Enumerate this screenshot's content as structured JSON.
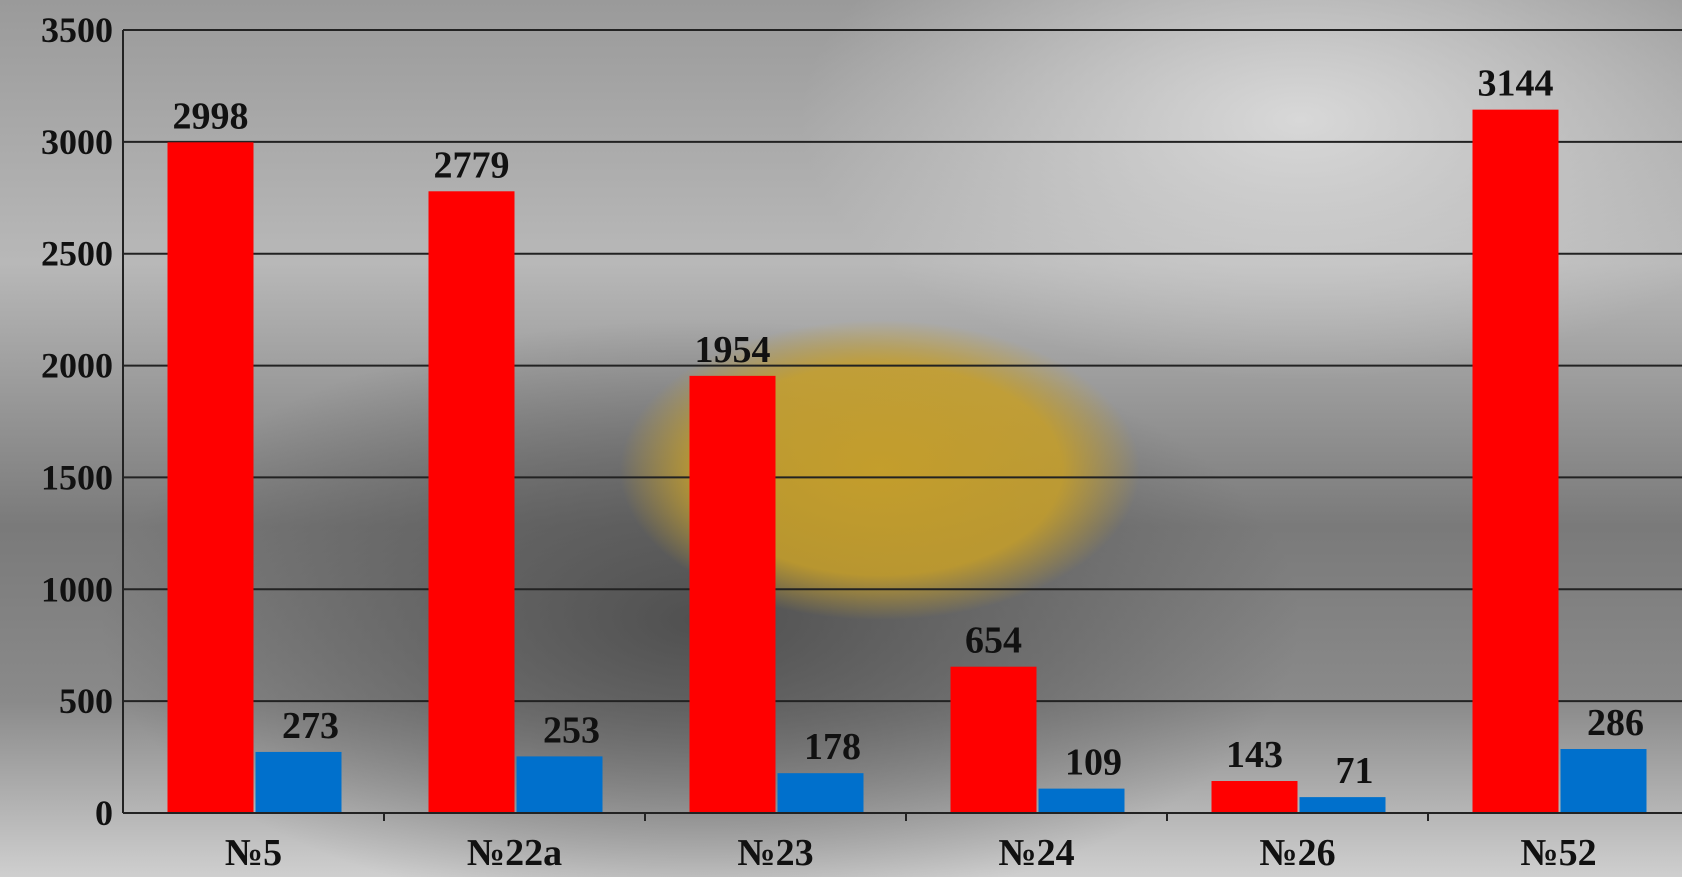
{
  "chart_data": {
    "type": "bar",
    "categories": [
      "№5",
      "№22а",
      "№23",
      "№24",
      "№26",
      "№52"
    ],
    "series": [
      {
        "color": "#ff0000",
        "values": [
          2998,
          2779,
          1954,
          654,
          143,
          3144
        ]
      },
      {
        "color": "#0070cc",
        "values": [
          273,
          253,
          178,
          109,
          71,
          286
        ]
      }
    ],
    "ylim": [
      0,
      3500
    ],
    "yticks": [
      0,
      500,
      1000,
      1500,
      2000,
      2500,
      3000,
      3500
    ],
    "grid": true
  }
}
